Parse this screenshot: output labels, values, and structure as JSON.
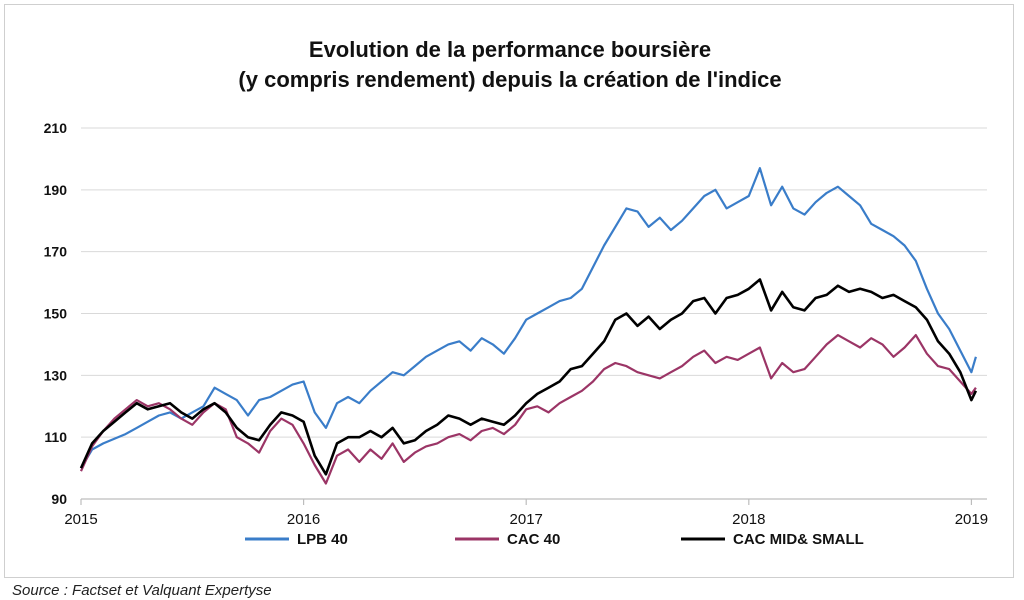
{
  "chart_data": {
    "type": "line",
    "title_line1": "Evolution de la performance boursière",
    "title_line2": "(y compris rendement) depuis la création de l'indice",
    "xlabel": "",
    "ylabel": "",
    "xlim": [
      2015,
      2019.07
    ],
    "ylim": [
      90,
      210
    ],
    "y_ticks": [
      90,
      110,
      130,
      150,
      170,
      190,
      210
    ],
    "x_ticks": [
      2015,
      2016,
      2017,
      2018,
      2019
    ],
    "grid": "horizontal",
    "legend_position": "bottom",
    "series": [
      {
        "name": "LPB 40",
        "color": "#3a7dc9",
        "points": [
          [
            2015.0,
            100
          ],
          [
            2015.05,
            106
          ],
          [
            2015.1,
            108
          ],
          [
            2015.2,
            111
          ],
          [
            2015.25,
            113
          ],
          [
            2015.3,
            115
          ],
          [
            2015.35,
            117
          ],
          [
            2015.4,
            118
          ],
          [
            2015.45,
            116
          ],
          [
            2015.5,
            118
          ],
          [
            2015.55,
            120
          ],
          [
            2015.6,
            126
          ],
          [
            2015.65,
            124
          ],
          [
            2015.7,
            122
          ],
          [
            2015.75,
            117
          ],
          [
            2015.8,
            122
          ],
          [
            2015.85,
            123
          ],
          [
            2015.9,
            125
          ],
          [
            2015.95,
            127
          ],
          [
            2016.0,
            128
          ],
          [
            2016.05,
            118
          ],
          [
            2016.1,
            113
          ],
          [
            2016.15,
            121
          ],
          [
            2016.2,
            123
          ],
          [
            2016.25,
            121
          ],
          [
            2016.3,
            125
          ],
          [
            2016.35,
            128
          ],
          [
            2016.4,
            131
          ],
          [
            2016.45,
            130
          ],
          [
            2016.5,
            133
          ],
          [
            2016.55,
            136
          ],
          [
            2016.6,
            138
          ],
          [
            2016.65,
            140
          ],
          [
            2016.7,
            141
          ],
          [
            2016.75,
            138
          ],
          [
            2016.8,
            142
          ],
          [
            2016.85,
            140
          ],
          [
            2016.9,
            137
          ],
          [
            2016.95,
            142
          ],
          [
            2017.0,
            148
          ],
          [
            2017.05,
            150
          ],
          [
            2017.1,
            152
          ],
          [
            2017.15,
            154
          ],
          [
            2017.2,
            155
          ],
          [
            2017.25,
            158
          ],
          [
            2017.3,
            165
          ],
          [
            2017.35,
            172
          ],
          [
            2017.4,
            178
          ],
          [
            2017.45,
            184
          ],
          [
            2017.5,
            183
          ],
          [
            2017.55,
            178
          ],
          [
            2017.6,
            181
          ],
          [
            2017.65,
            177
          ],
          [
            2017.7,
            180
          ],
          [
            2017.75,
            184
          ],
          [
            2017.8,
            188
          ],
          [
            2017.85,
            190
          ],
          [
            2017.9,
            184
          ],
          [
            2017.95,
            186
          ],
          [
            2018.0,
            188
          ],
          [
            2018.05,
            197
          ],
          [
            2018.1,
            185
          ],
          [
            2018.15,
            191
          ],
          [
            2018.2,
            184
          ],
          [
            2018.25,
            182
          ],
          [
            2018.3,
            186
          ],
          [
            2018.35,
            189
          ],
          [
            2018.4,
            191
          ],
          [
            2018.45,
            188
          ],
          [
            2018.5,
            185
          ],
          [
            2018.55,
            179
          ],
          [
            2018.6,
            177
          ],
          [
            2018.65,
            175
          ],
          [
            2018.7,
            172
          ],
          [
            2018.75,
            167
          ],
          [
            2018.8,
            158
          ],
          [
            2018.85,
            150
          ],
          [
            2018.9,
            145
          ],
          [
            2018.95,
            138
          ],
          [
            2019.0,
            131
          ],
          [
            2019.02,
            136
          ]
        ]
      },
      {
        "name": "CAC 40",
        "color": "#9b3566",
        "points": [
          [
            2015.0,
            99
          ],
          [
            2015.05,
            107
          ],
          [
            2015.1,
            112
          ],
          [
            2015.15,
            116
          ],
          [
            2015.2,
            119
          ],
          [
            2015.25,
            122
          ],
          [
            2015.3,
            120
          ],
          [
            2015.35,
            121
          ],
          [
            2015.4,
            119
          ],
          [
            2015.45,
            116
          ],
          [
            2015.5,
            114
          ],
          [
            2015.55,
            118
          ],
          [
            2015.6,
            121
          ],
          [
            2015.65,
            119
          ],
          [
            2015.7,
            110
          ],
          [
            2015.75,
            108
          ],
          [
            2015.8,
            105
          ],
          [
            2015.85,
            112
          ],
          [
            2015.9,
            116
          ],
          [
            2015.95,
            114
          ],
          [
            2016.0,
            108
          ],
          [
            2016.05,
            101
          ],
          [
            2016.1,
            95
          ],
          [
            2016.15,
            104
          ],
          [
            2016.2,
            106
          ],
          [
            2016.25,
            102
          ],
          [
            2016.3,
            106
          ],
          [
            2016.35,
            103
          ],
          [
            2016.4,
            108
          ],
          [
            2016.45,
            102
          ],
          [
            2016.5,
            105
          ],
          [
            2016.55,
            107
          ],
          [
            2016.6,
            108
          ],
          [
            2016.65,
            110
          ],
          [
            2016.7,
            111
          ],
          [
            2016.75,
            109
          ],
          [
            2016.8,
            112
          ],
          [
            2016.85,
            113
          ],
          [
            2016.9,
            111
          ],
          [
            2016.95,
            114
          ],
          [
            2017.0,
            119
          ],
          [
            2017.05,
            120
          ],
          [
            2017.1,
            118
          ],
          [
            2017.15,
            121
          ],
          [
            2017.2,
            123
          ],
          [
            2017.25,
            125
          ],
          [
            2017.3,
            128
          ],
          [
            2017.35,
            132
          ],
          [
            2017.4,
            134
          ],
          [
            2017.45,
            133
          ],
          [
            2017.5,
            131
          ],
          [
            2017.55,
            130
          ],
          [
            2017.6,
            129
          ],
          [
            2017.65,
            131
          ],
          [
            2017.7,
            133
          ],
          [
            2017.75,
            136
          ],
          [
            2017.8,
            138
          ],
          [
            2017.85,
            134
          ],
          [
            2017.9,
            136
          ],
          [
            2017.95,
            135
          ],
          [
            2018.0,
            137
          ],
          [
            2018.05,
            139
          ],
          [
            2018.1,
            129
          ],
          [
            2018.15,
            134
          ],
          [
            2018.2,
            131
          ],
          [
            2018.25,
            132
          ],
          [
            2018.3,
            136
          ],
          [
            2018.35,
            140
          ],
          [
            2018.4,
            143
          ],
          [
            2018.45,
            141
          ],
          [
            2018.5,
            139
          ],
          [
            2018.55,
            142
          ],
          [
            2018.6,
            140
          ],
          [
            2018.65,
            136
          ],
          [
            2018.7,
            139
          ],
          [
            2018.75,
            143
          ],
          [
            2018.8,
            137
          ],
          [
            2018.85,
            133
          ],
          [
            2018.9,
            132
          ],
          [
            2018.95,
            128
          ],
          [
            2019.0,
            124
          ],
          [
            2019.02,
            126
          ]
        ]
      },
      {
        "name": "CAC MID& SMALL",
        "color": "#000000",
        "points": [
          [
            2015.0,
            100
          ],
          [
            2015.05,
            108
          ],
          [
            2015.1,
            112
          ],
          [
            2015.15,
            115
          ],
          [
            2015.2,
            118
          ],
          [
            2015.25,
            121
          ],
          [
            2015.3,
            119
          ],
          [
            2015.35,
            120
          ],
          [
            2015.4,
            121
          ],
          [
            2015.45,
            118
          ],
          [
            2015.5,
            116
          ],
          [
            2015.55,
            119
          ],
          [
            2015.6,
            121
          ],
          [
            2015.65,
            118
          ],
          [
            2015.7,
            113
          ],
          [
            2015.75,
            110
          ],
          [
            2015.8,
            109
          ],
          [
            2015.85,
            114
          ],
          [
            2015.9,
            118
          ],
          [
            2015.95,
            117
          ],
          [
            2016.0,
            115
          ],
          [
            2016.05,
            104
          ],
          [
            2016.1,
            98
          ],
          [
            2016.15,
            108
          ],
          [
            2016.2,
            110
          ],
          [
            2016.25,
            110
          ],
          [
            2016.3,
            112
          ],
          [
            2016.35,
            110
          ],
          [
            2016.4,
            113
          ],
          [
            2016.45,
            108
          ],
          [
            2016.5,
            109
          ],
          [
            2016.55,
            112
          ],
          [
            2016.6,
            114
          ],
          [
            2016.65,
            117
          ],
          [
            2016.7,
            116
          ],
          [
            2016.75,
            114
          ],
          [
            2016.8,
            116
          ],
          [
            2016.85,
            115
          ],
          [
            2016.9,
            114
          ],
          [
            2016.95,
            117
          ],
          [
            2017.0,
            121
          ],
          [
            2017.05,
            124
          ],
          [
            2017.1,
            126
          ],
          [
            2017.15,
            128
          ],
          [
            2017.2,
            132
          ],
          [
            2017.25,
            133
          ],
          [
            2017.3,
            137
          ],
          [
            2017.35,
            141
          ],
          [
            2017.4,
            148
          ],
          [
            2017.45,
            150
          ],
          [
            2017.5,
            146
          ],
          [
            2017.55,
            149
          ],
          [
            2017.6,
            145
          ],
          [
            2017.65,
            148
          ],
          [
            2017.7,
            150
          ],
          [
            2017.75,
            154
          ],
          [
            2017.8,
            155
          ],
          [
            2017.85,
            150
          ],
          [
            2017.9,
            155
          ],
          [
            2017.95,
            156
          ],
          [
            2018.0,
            158
          ],
          [
            2018.05,
            161
          ],
          [
            2018.1,
            151
          ],
          [
            2018.15,
            157
          ],
          [
            2018.2,
            152
          ],
          [
            2018.25,
            151
          ],
          [
            2018.3,
            155
          ],
          [
            2018.35,
            156
          ],
          [
            2018.4,
            159
          ],
          [
            2018.45,
            157
          ],
          [
            2018.5,
            158
          ],
          [
            2018.55,
            157
          ],
          [
            2018.6,
            155
          ],
          [
            2018.65,
            156
          ],
          [
            2018.7,
            154
          ],
          [
            2018.75,
            152
          ],
          [
            2018.8,
            148
          ],
          [
            2018.85,
            141
          ],
          [
            2018.9,
            137
          ],
          [
            2018.95,
            131
          ],
          [
            2019.0,
            122
          ],
          [
            2019.02,
            125
          ]
        ]
      }
    ]
  },
  "source_note": "Source : Factset et Valquant Expertyse"
}
